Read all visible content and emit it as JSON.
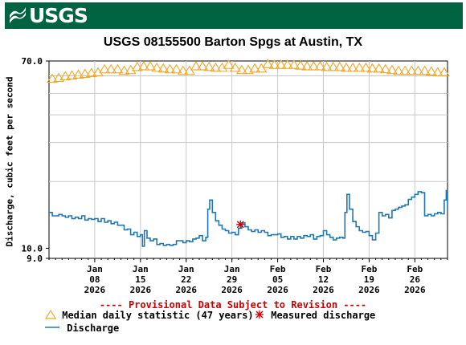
{
  "header": {
    "logo_text": "USGS",
    "brand_color": "#006341"
  },
  "chart_data": {
    "type": "line",
    "title": "USGS 08155500 Barton Spgs at Austin, TX",
    "ylabel": "Discharge, cubic feet per second",
    "y_scale": "log",
    "ylim": [
      9.0,
      70.0
    ],
    "y_ticks": [
      "70.0",
      "10.0",
      "9.0"
    ],
    "x_ticks": [
      {
        "day": 8,
        "line1": "Jan",
        "line2": "08",
        "line3": "2026"
      },
      {
        "day": 15,
        "line1": "Jan",
        "line2": "15",
        "line3": "2026"
      },
      {
        "day": 22,
        "line1": "Jan",
        "line2": "22",
        "line3": "2026"
      },
      {
        "day": 29,
        "line1": "Jan",
        "line2": "29",
        "line3": "2026"
      },
      {
        "day": 36,
        "line1": "Feb",
        "line2": "05",
        "line3": "2026"
      },
      {
        "day": 43,
        "line1": "Feb",
        "line2": "12",
        "line3": "2026"
      },
      {
        "day": 50,
        "line1": "Feb",
        "line2": "19",
        "line3": "2026"
      },
      {
        "day": 57,
        "line1": "Feb",
        "line2": "26",
        "line3": "2026"
      }
    ],
    "x_range": [
      1,
      62
    ],
    "grid": true,
    "series": [
      {
        "name": "Median daily statistic (47 years)",
        "color": "#f5a623",
        "marker": "triangle",
        "points": [
          [
            1.5,
            58
          ],
          [
            2.5,
            58.5
          ],
          [
            3.5,
            59.5
          ],
          [
            4.5,
            60
          ],
          [
            5.5,
            60.5
          ],
          [
            6.5,
            61
          ],
          [
            7.5,
            61.5
          ],
          [
            8.5,
            62
          ],
          [
            9.5,
            64
          ],
          [
            10.5,
            64
          ],
          [
            11.5,
            64
          ],
          [
            12.5,
            63
          ],
          [
            13.5,
            63.5
          ],
          [
            14.5,
            65.5
          ],
          [
            15.5,
            66
          ],
          [
            16.5,
            66
          ],
          [
            17.5,
            65
          ],
          [
            18.5,
            64.5
          ],
          [
            19.5,
            64
          ],
          [
            20.5,
            64
          ],
          [
            21.5,
            63
          ],
          [
            22.5,
            63
          ],
          [
            23.5,
            66
          ],
          [
            24.5,
            66
          ],
          [
            25.5,
            65.5
          ],
          [
            26.5,
            65
          ],
          [
            27.5,
            65
          ],
          [
            28.5,
            67
          ],
          [
            29.5,
            65
          ],
          [
            30.5,
            63.5
          ],
          [
            31.5,
            63.5
          ],
          [
            32.5,
            64.5
          ],
          [
            33.5,
            64.5
          ],
          [
            34.5,
            67.5
          ],
          [
            35.5,
            67
          ],
          [
            36.5,
            67
          ],
          [
            37.5,
            67
          ],
          [
            38.5,
            67
          ],
          [
            39.5,
            66.5
          ],
          [
            40.5,
            66
          ],
          [
            41.5,
            66
          ],
          [
            42.5,
            66
          ],
          [
            43.5,
            65.5
          ],
          [
            44.5,
            65.5
          ],
          [
            45.5,
            65.5
          ],
          [
            46.5,
            65
          ],
          [
            47.5,
            65
          ],
          [
            48.5,
            65
          ],
          [
            49.5,
            65
          ],
          [
            50.5,
            64.5
          ],
          [
            51.5,
            64.5
          ],
          [
            52.5,
            64
          ],
          [
            53.5,
            63.5
          ],
          [
            54.5,
            63
          ],
          [
            55.5,
            63
          ],
          [
            56.5,
            63
          ],
          [
            57.5,
            63
          ],
          [
            58.5,
            63
          ],
          [
            59.5,
            62.5
          ],
          [
            60.5,
            62
          ],
          [
            61.5,
            62
          ]
        ]
      },
      {
        "name": "Discharge",
        "color": "#1f77b4",
        "marker": "line",
        "points": [
          [
            1,
            14.5
          ],
          [
            1.5,
            14
          ],
          [
            2,
            14
          ],
          [
            2.5,
            14.2
          ],
          [
            3,
            14
          ],
          [
            3.5,
            13.8
          ],
          [
            4,
            14
          ],
          [
            4.5,
            13.6
          ],
          [
            5,
            13.8
          ],
          [
            5.5,
            13.6
          ],
          [
            6,
            14
          ],
          [
            6.5,
            13.4
          ],
          [
            7,
            13.6
          ],
          [
            7.5,
            13.5
          ],
          [
            8,
            13.6
          ],
          [
            8.5,
            13.2
          ],
          [
            9,
            13.6
          ],
          [
            9.5,
            13.1
          ],
          [
            10,
            13.3
          ],
          [
            10.5,
            12.9
          ],
          [
            11,
            13.1
          ],
          [
            11.5,
            12.7
          ],
          [
            12,
            12.7
          ],
          [
            12.5,
            12.1
          ],
          [
            13,
            12.2
          ],
          [
            13.5,
            11.5
          ],
          [
            14,
            11.8
          ],
          [
            14.5,
            11.3
          ],
          [
            15,
            11.5
          ],
          [
            15.3,
            10.2
          ],
          [
            15.6,
            12
          ],
          [
            16,
            11.1
          ],
          [
            16.5,
            10.8
          ],
          [
            17,
            11
          ],
          [
            17.5,
            10.4
          ],
          [
            18,
            10.5
          ],
          [
            18.5,
            10.3
          ],
          [
            19,
            10.4
          ],
          [
            19.5,
            10.3
          ],
          [
            20,
            10.4
          ],
          [
            20.5,
            10.8
          ],
          [
            21,
            10.8
          ],
          [
            21.5,
            10.6
          ],
          [
            22,
            10.8
          ],
          [
            22.5,
            10.7
          ],
          [
            23,
            11
          ],
          [
            23.5,
            11.1
          ],
          [
            24,
            11.4
          ],
          [
            24.5,
            10.8
          ],
          [
            25,
            11.2
          ],
          [
            25.3,
            15
          ],
          [
            25.6,
            16.5
          ],
          [
            26,
            14.5
          ],
          [
            26.5,
            13.3
          ],
          [
            27,
            12.7
          ],
          [
            27.5,
            12.2
          ],
          [
            28,
            12
          ],
          [
            28.5,
            11.7
          ],
          [
            29,
            11.8
          ],
          [
            29.5,
            11.5
          ],
          [
            30,
            12.3
          ],
          [
            30.5,
            13
          ],
          [
            31,
            12.5
          ],
          [
            31.5,
            12.1
          ],
          [
            32,
            11.9
          ],
          [
            32.5,
            12.1
          ],
          [
            33,
            11.8
          ],
          [
            33.5,
            12
          ],
          [
            34,
            11.8
          ],
          [
            34.5,
            11.4
          ],
          [
            35,
            11.5
          ],
          [
            35.5,
            11.5
          ],
          [
            36,
            11.6
          ],
          [
            36.5,
            11.2
          ],
          [
            37,
            11.3
          ],
          [
            37.5,
            11
          ],
          [
            38,
            11.3
          ],
          [
            38.5,
            11
          ],
          [
            39,
            11.3
          ],
          [
            39.5,
            11.1
          ],
          [
            40,
            11.4
          ],
          [
            40.5,
            11.3
          ],
          [
            41,
            11.5
          ],
          [
            41.5,
            11
          ],
          [
            42,
            11.3
          ],
          [
            42.5,
            11.4
          ],
          [
            43,
            12
          ],
          [
            43.5,
            11.5
          ],
          [
            44,
            11.2
          ],
          [
            44.5,
            10.9
          ],
          [
            45,
            11.1
          ],
          [
            45.5,
            11.2
          ],
          [
            46,
            11.1
          ],
          [
            46.3,
            14.5
          ],
          [
            46.6,
            17.5
          ],
          [
            47,
            15
          ],
          [
            47.5,
            13.2
          ],
          [
            48,
            12.5
          ],
          [
            48.5,
            12
          ],
          [
            49,
            11.8
          ],
          [
            49.5,
            11.9
          ],
          [
            50,
            11.4
          ],
          [
            50.5,
            10.9
          ],
          [
            51,
            11.7
          ],
          [
            51.5,
            14.5
          ],
          [
            52,
            14
          ],
          [
            52.5,
            14.2
          ],
          [
            53,
            13.7
          ],
          [
            53.5,
            14.8
          ],
          [
            54,
            15
          ],
          [
            54.5,
            15.3
          ],
          [
            55,
            15.5
          ],
          [
            55.5,
            15.7
          ],
          [
            56,
            16.6
          ],
          [
            56.5,
            17
          ],
          [
            57,
            17.5
          ],
          [
            57.5,
            18
          ],
          [
            58,
            17.8
          ],
          [
            58.5,
            14
          ],
          [
            59,
            14.2
          ],
          [
            59.5,
            14
          ],
          [
            60,
            14.3
          ],
          [
            60.5,
            14.5
          ],
          [
            61,
            14.3
          ],
          [
            61.5,
            16.5
          ],
          [
            61.8,
            18.2
          ],
          [
            62,
            15
          ]
        ]
      }
    ],
    "measured_points": [
      {
        "x": 30.3,
        "y": 12.8
      }
    ]
  },
  "provisional_text": "---- Provisional Data Subject to Revision ----",
  "legend": {
    "median_label": "Median daily statistic (47 years)",
    "measured_label": "Measured discharge",
    "discharge_label": "Discharge"
  }
}
